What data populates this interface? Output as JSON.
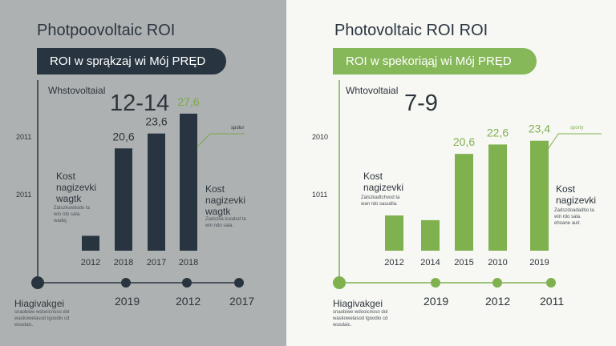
{
  "panels": {
    "left": {
      "title": "Photpoovoltaic ROI",
      "banner": "ROI w sprąkzaj wi Mój PRĘD",
      "sub_label": "Whstovoltaial",
      "big_value": "12-14",
      "kost_label": "Kost\nnagizevki\nwagtk",
      "kost_note": "Zalszkuwdodo ta\nwin rdo sala.\nwadej.",
      "kost_label_right": "Kost\nnagizevki\nwagtk",
      "kost_note_right": "Zadszka kuodod ta\nwin ndo sala.",
      "label_tag": "spolur",
      "y_ticks": [
        "2011",
        "2011"
      ],
      "timeline": {
        "years": [
          "2019",
          "2012",
          "2017"
        ],
        "footer_title": "Hiagivakgei",
        "footer_note": "snaobiwe wdooicnoso dol\nwaskowelasod tgoodio cd\nwusdaic."
      },
      "colors": {
        "bg": "#aeb1b1",
        "bar": "#283540",
        "accent": "#7aa84c",
        "banner": "#283540"
      }
    },
    "right": {
      "title": "Photovoltaic ROI ROI",
      "banner": "ROI w spekoriąąj wi Mój PRĘD",
      "sub_label": "Whtovoltaial",
      "big_value": "7-9",
      "kost_label": "Kost\nnagizevki",
      "kost_note": "Zalszkadtchvod ta\nwan rdo sauudla.",
      "kost_label_right": "Kost\nnagizevki",
      "kost_note_right": "Zadszdoadadbo ta\nwin rdo sala.\nehoane aulr.",
      "label_tag": "sporty",
      "y_ticks": [
        "2010",
        "1011"
      ],
      "timeline": {
        "years": [
          "2019",
          "2012",
          "2011"
        ],
        "footer_title": "Hiagivakgei",
        "footer_note": "snaobiwe wdooicnoso dol\nwaskowelasod tgoodio cd\nwusdaic."
      },
      "colors": {
        "bg": "#f7f7f3",
        "bar": "#7fb14f",
        "accent": "#7fb14f",
        "banner": "#86b85a"
      }
    }
  },
  "chart_data": [
    {
      "type": "bar",
      "title": "Photpoovoltaic ROI",
      "categories": [
        "2012",
        "2018",
        "2017",
        "2018"
      ],
      "values": [
        3,
        20.6,
        23.6,
        27.6
      ],
      "value_labels": [
        "",
        "20,6",
        "23,6",
        "27,6"
      ],
      "ylim": [
        0,
        30
      ]
    },
    {
      "type": "bar",
      "title": "Photovoltaic ROI ROI",
      "categories": [
        "2012",
        "2014",
        "2015",
        "2010",
        "2019"
      ],
      "values": [
        7.5,
        6.5,
        20.6,
        22.6,
        23.4
      ],
      "value_labels": [
        "",
        "",
        "20,6",
        "22,6",
        "23,4"
      ],
      "ylim": [
        0,
        30
      ]
    }
  ]
}
